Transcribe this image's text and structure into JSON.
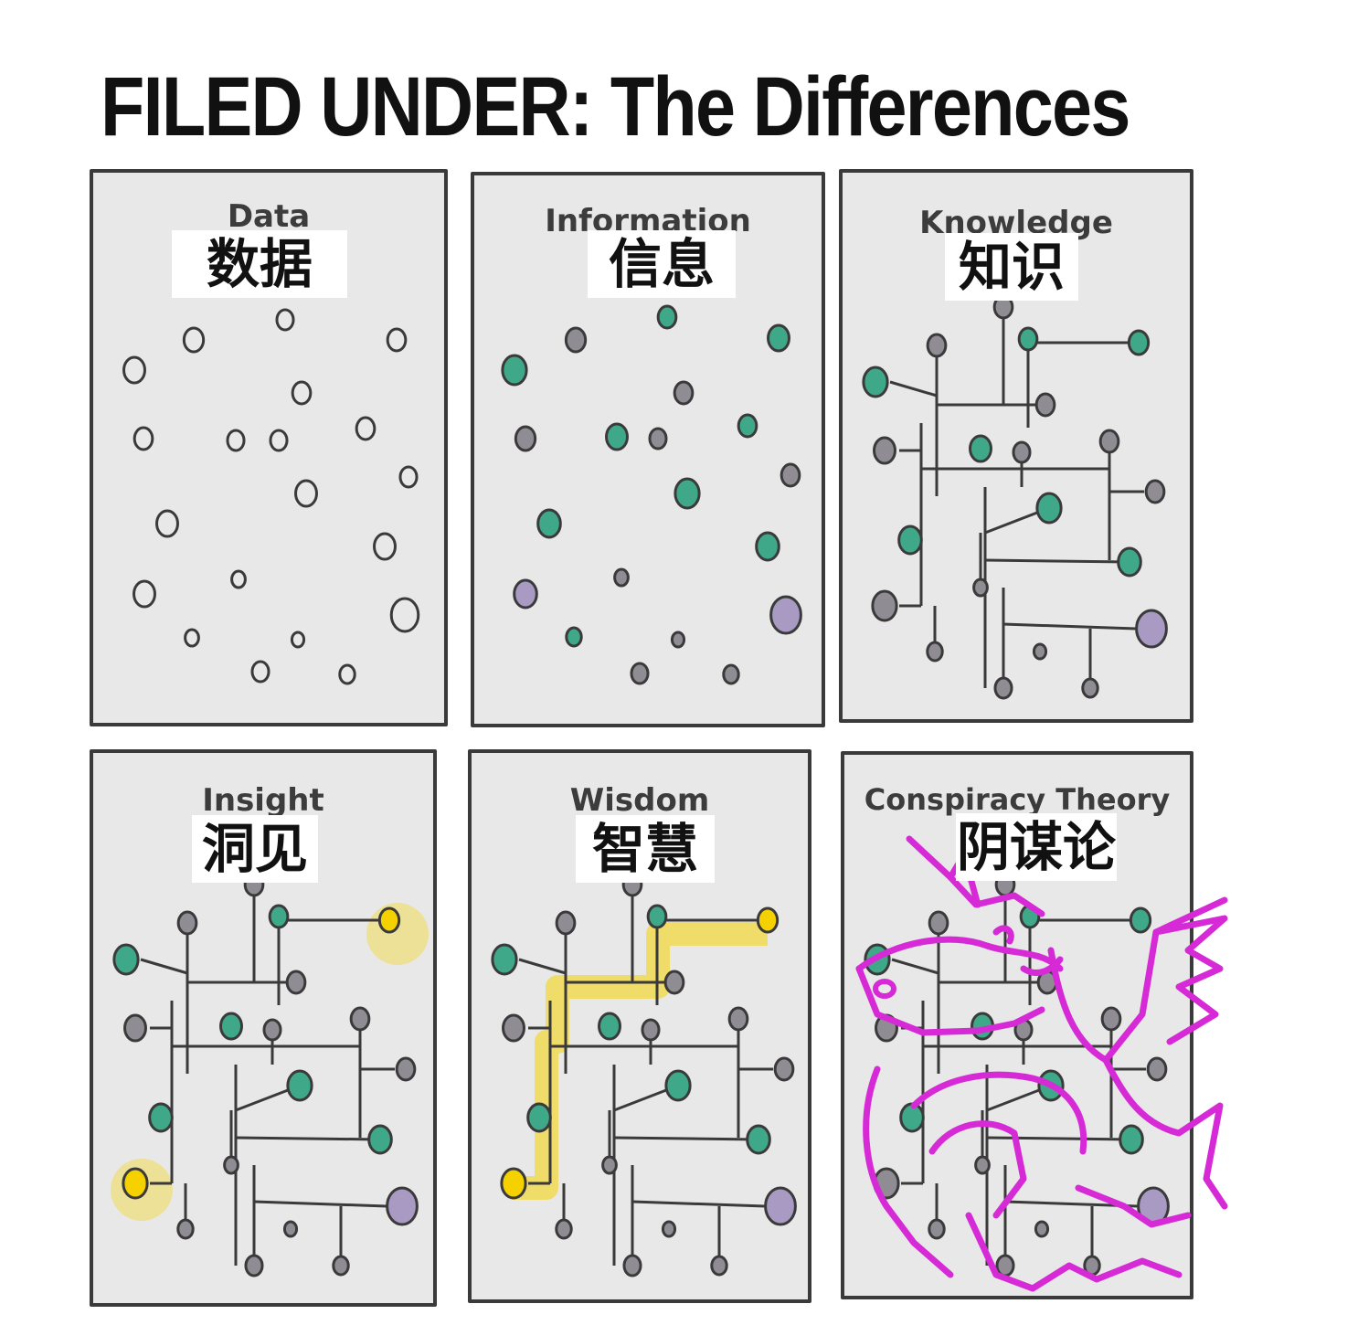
{
  "title": "FILED UNDER: The Differences",
  "panels": [
    {
      "key": "data",
      "title": "Data",
      "label_cn": "数据"
    },
    {
      "key": "information",
      "title": "Information",
      "label_cn": "信息"
    },
    {
      "key": "knowledge",
      "title": "Knowledge",
      "label_cn": "知识"
    },
    {
      "key": "insight",
      "title": "Insight",
      "label_cn": "洞见"
    },
    {
      "key": "wisdom",
      "title": "Wisdom",
      "label_cn": "智慧"
    },
    {
      "key": "conspiracy",
      "title": "Conspiracy Theory",
      "label_cn": "阴谋论"
    }
  ],
  "colors": {
    "panel_bg": "#e8e8e8",
    "node_gray": "#8f8c94",
    "node_green": "#3fa888",
    "node_purple": "#a99ac4",
    "highlight_yellow": "#f5d100",
    "unicorn_magenta": "#d62ad6"
  }
}
